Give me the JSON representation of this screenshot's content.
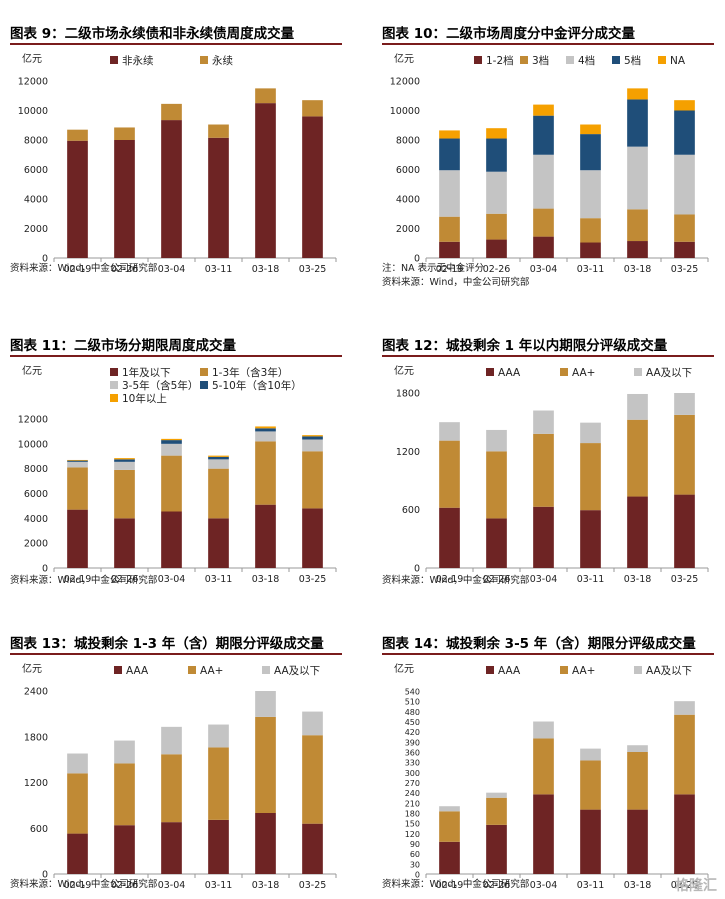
{
  "panels": [
    {
      "title": "图表 9：二级市场永续债和非永续债周度成交量",
      "notes": [
        "资料来源：Wind，中金公司研究部"
      ],
      "chart_data": {
        "type": "bar",
        "stacked": true,
        "unit": "亿元",
        "categories": [
          "02-19",
          "02-26",
          "03-04",
          "03-11",
          "03-18",
          "03-25"
        ],
        "ylim": [
          0,
          12000
        ],
        "yticks": [
          0,
          2000,
          4000,
          6000,
          8000,
          10000,
          12000
        ],
        "legend_columns": 2,
        "series": [
          {
            "name": "非永续",
            "color": "#6e2424",
            "values": [
              7950,
              8000,
              9350,
              8150,
              10500,
              9600
            ]
          },
          {
            "name": "永续",
            "color": "#c08a35",
            "values": [
              750,
              850,
              1100,
              900,
              1000,
              1100
            ]
          }
        ]
      }
    },
    {
      "title": "图表 10：二级市场周度分中金评分成交量",
      "notes": [
        "注：NA 表示无中金评分",
        "资料来源：Wind，中金公司研究部"
      ],
      "chart_data": {
        "type": "bar",
        "stacked": true,
        "unit": "亿元",
        "categories": [
          "02-19",
          "02-26",
          "03-04",
          "03-11",
          "03-18",
          "03-25"
        ],
        "ylim": [
          0,
          12000
        ],
        "yticks": [
          0,
          2000,
          4000,
          6000,
          8000,
          10000,
          12000
        ],
        "legend_columns": 5,
        "series": [
          {
            "name": "1-2档",
            "color": "#6e2424",
            "values": [
              1100,
              1250,
              1450,
              1050,
              1150,
              1100
            ]
          },
          {
            "name": "3档",
            "color": "#c08a35",
            "values": [
              1700,
              1750,
              1900,
              1650,
              2150,
              1850
            ]
          },
          {
            "name": "4档",
            "color": "#c4c4c4",
            "values": [
              3150,
              2850,
              3650,
              3250,
              4250,
              4050
            ]
          },
          {
            "name": "5档",
            "color": "#1f4e79",
            "values": [
              2150,
              2250,
              2650,
              2450,
              3200,
              3000
            ]
          },
          {
            "name": "NA",
            "color": "#f5a000",
            "values": [
              550,
              700,
              750,
              650,
              750,
              700
            ]
          }
        ]
      }
    },
    {
      "title": "图表 11：二级市场分期限周度成交量",
      "notes": [
        "资料来源：Wind，中金公司研究部"
      ],
      "chart_data": {
        "type": "bar",
        "stacked": true,
        "unit": "亿元",
        "categories": [
          "02-19",
          "02-26",
          "03-04",
          "03-11",
          "03-18",
          "03-25"
        ],
        "ylim": [
          0,
          12000
        ],
        "yticks": [
          0,
          2000,
          4000,
          6000,
          8000,
          10000,
          12000
        ],
        "legend_columns": 2,
        "series": [
          {
            "name": "1年及以下",
            "color": "#6e2424",
            "values": [
              4700,
              4000,
              4550,
              4000,
              5100,
              4800
            ]
          },
          {
            "name": "1-3年（含3年）",
            "color": "#c08a35",
            "values": [
              3400,
              3900,
              4500,
              4000,
              5100,
              4600
            ]
          },
          {
            "name": "3-5年（含5年）",
            "color": "#c4c4c4",
            "values": [
              450,
              650,
              950,
              750,
              800,
              950
            ]
          },
          {
            "name": "5-10年（含10年）",
            "color": "#1f4e79",
            "values": [
              100,
              200,
              300,
              200,
              250,
              250
            ]
          },
          {
            "name": "10年以上",
            "color": "#f5a000",
            "values": [
              50,
              100,
              100,
              100,
              150,
              100
            ]
          }
        ]
      }
    },
    {
      "title": "图表 12：城投剩余 1 年以内期限分评级成交量",
      "notes": [
        "资料来源：Wind，中金公司研究部"
      ],
      "chart_data": {
        "type": "bar",
        "stacked": true,
        "unit": "亿元",
        "categories": [
          "02-19",
          "02-26",
          "03-04",
          "03-11",
          "03-18",
          "03-25"
        ],
        "ylim": [
          0,
          1800
        ],
        "yticks": [
          0,
          600,
          1200,
          1800
        ],
        "legend_columns": 3,
        "series": [
          {
            "name": "AAA",
            "color": "#6e2424",
            "values": [
              620,
              510,
              630,
              595,
              735,
              755
            ]
          },
          {
            "name": "AA+",
            "color": "#c08a35",
            "values": [
              690,
              690,
              750,
              690,
              790,
              820
            ]
          },
          {
            "name": "AA及以下",
            "color": "#c4c4c4",
            "values": [
              190,
              220,
              240,
              210,
              265,
              225
            ]
          }
        ]
      }
    },
    {
      "title": "图表 13：城投剩余 1-3 年（含）期限分评级成交量",
      "notes": [
        "资料来源：Wind，中金公司研究部"
      ],
      "chart_data": {
        "type": "bar",
        "stacked": true,
        "unit": "亿元",
        "categories": [
          "02-19",
          "02-26",
          "03-04",
          "03-11",
          "03-18",
          "03-25"
        ],
        "ylim": [
          0,
          2400
        ],
        "yticks": [
          0,
          600,
          1200,
          1800,
          2400
        ],
        "legend_columns": 3,
        "series": [
          {
            "name": "AAA",
            "color": "#6e2424",
            "values": [
              530,
              640,
              680,
              710,
              800,
              660
            ]
          },
          {
            "name": "AA+",
            "color": "#c08a35",
            "values": [
              790,
              810,
              890,
              950,
              1260,
              1160
            ]
          },
          {
            "name": "AA及以下",
            "color": "#c4c4c4",
            "values": [
              260,
              300,
              360,
              300,
              340,
              310
            ]
          }
        ]
      }
    },
    {
      "title": "图表 14：城投剩余 3-5 年（含）期限分评级成交量",
      "notes": [
        "资料来源：Wind，中金公司研究部"
      ],
      "chart_data": {
        "type": "bar",
        "stacked": true,
        "unit": "亿元",
        "categories": [
          "02-19",
          "02-26",
          "03-04",
          "03-11",
          "03-18",
          "03-25"
        ],
        "ylim": [
          0,
          540
        ],
        "yticks": [
          0,
          30,
          60,
          90,
          120,
          150,
          180,
          210,
          240,
          270,
          300,
          330,
          360,
          390,
          420,
          450,
          480,
          510,
          540
        ],
        "legend_columns": 3,
        "series": [
          {
            "name": "AAA",
            "color": "#6e2424",
            "values": [
              95,
              145,
              235,
              190,
              190,
              235
            ]
          },
          {
            "name": "AA+",
            "color": "#c08a35",
            "values": [
              90,
              80,
              165,
              145,
              170,
              235
            ]
          },
          {
            "name": "AA及以下",
            "color": "#c4c4c4",
            "values": [
              15,
              15,
              50,
              35,
              20,
              40
            ]
          }
        ]
      }
    }
  ],
  "watermark": "格隆汇"
}
